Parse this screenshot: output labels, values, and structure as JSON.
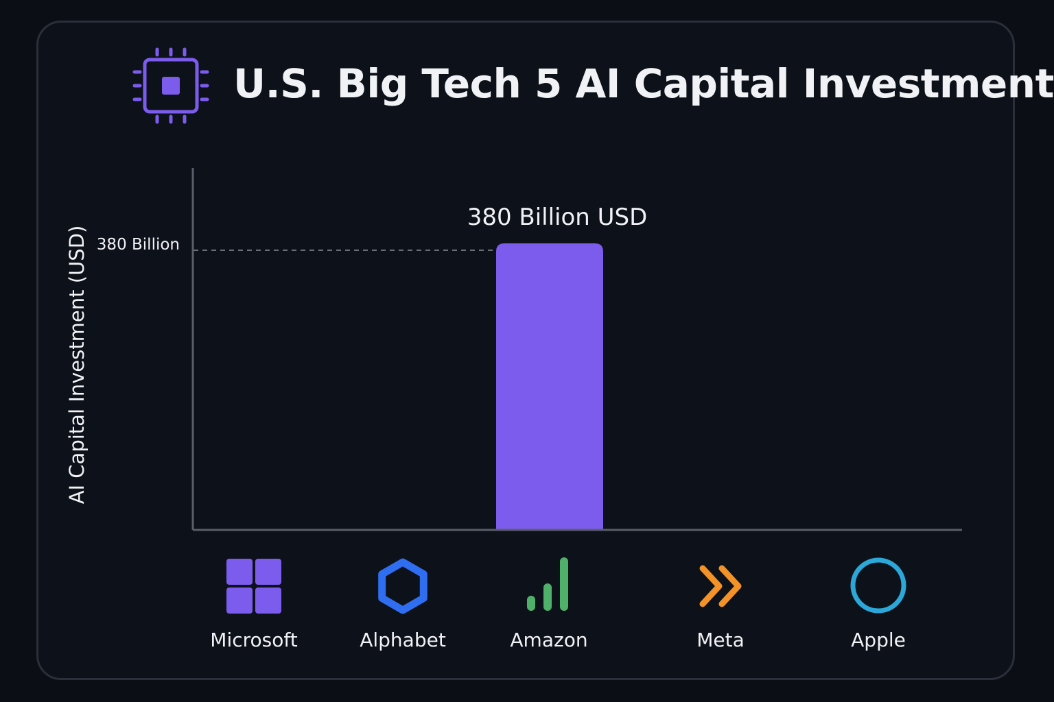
{
  "header": {
    "title": "U.S. Big Tech 5 AI Capital Investment",
    "icon": "cpu-chip-icon"
  },
  "colors": {
    "accent": "#7c5cec",
    "background": "#0b0e14",
    "card": "#0d1119",
    "axis": "#5a5e68",
    "text": "#f1f2f5"
  },
  "companies": [
    {
      "name": "Microsoft",
      "icon": "microsoft-icon",
      "color": "#7c5cec"
    },
    {
      "name": "Alphabet",
      "icon": "hexagon-icon",
      "color": "#2f6ef0"
    },
    {
      "name": "Amazon",
      "icon": "bars-icon",
      "color": "#4fb06a"
    },
    {
      "name": "Meta",
      "icon": "double-chevron-icon",
      "color": "#f29227"
    },
    {
      "name": "Apple",
      "icon": "ring-icon",
      "color": "#2ba7d8"
    }
  ],
  "chart_data": {
    "type": "bar",
    "categories": [
      "Microsoft",
      "Alphabet",
      "Amazon",
      "Meta",
      "Apple"
    ],
    "values": [
      null,
      null,
      380,
      null,
      null
    ],
    "value_unit": "Billion USD",
    "title": "U.S. Big Tech 5 AI Capital Investment",
    "xlabel": "",
    "ylabel": "AI Capital Investment (USD)",
    "ylim": [
      0,
      400
    ],
    "ytick_values": [
      380
    ],
    "ytick_labels": [
      "380 Billion"
    ],
    "bar_label": "380 Billion USD",
    "bar_category": "Amazon",
    "bar_color": "#7c5cec",
    "reference_line": {
      "value": 380,
      "style": "dashed"
    },
    "grid": false,
    "legend": "none"
  }
}
